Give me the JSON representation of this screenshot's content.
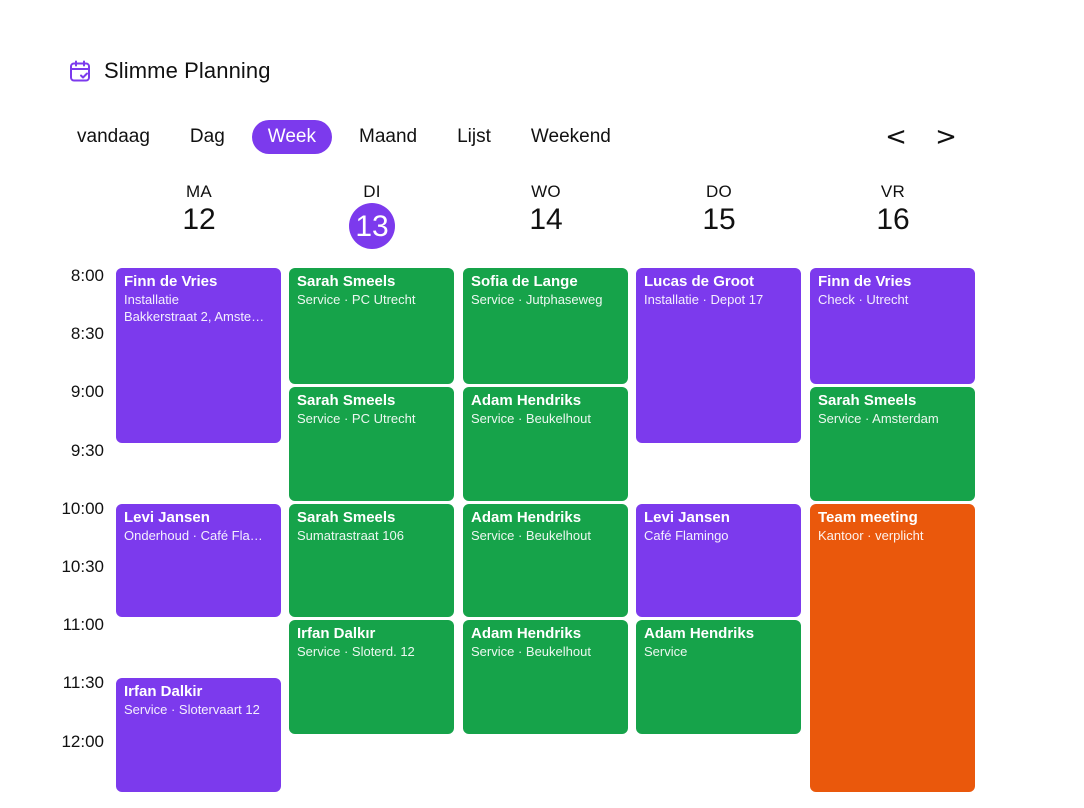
{
  "app": {
    "title": "Slimme Planning",
    "icon": "calendar-check-icon"
  },
  "views": [
    "vandaag",
    "Dag",
    "Week",
    "Maand",
    "Lijst",
    "Weekend"
  ],
  "active_view": "Week",
  "nav": {
    "prev": "<",
    "next": ">"
  },
  "days": [
    {
      "name": "MA",
      "num": "12",
      "today": false
    },
    {
      "name": "DI",
      "num": "13",
      "today": true
    },
    {
      "name": "WO",
      "num": "14",
      "today": false
    },
    {
      "name": "DO",
      "num": "15",
      "today": false
    },
    {
      "name": "VR",
      "num": "16",
      "today": false
    }
  ],
  "times": [
    "8:00",
    "8:30",
    "9:00",
    "9:30",
    "10:00",
    "10:30",
    "11:00",
    "11:30",
    "12:00"
  ],
  "colors": {
    "accent": "#7c3aed",
    "purple": "#7c3aed",
    "green": "#16a34a",
    "orange": "#ea580c"
  },
  "events": [
    {
      "day": 0,
      "start": "8:00",
      "end": "9:30",
      "color": "purple",
      "title": "Finn de Vries",
      "lines": [
        "Installatie",
        "Bakkerstraat 2, Amste…"
      ]
    },
    {
      "day": 0,
      "start": "10:00",
      "end": "11:00",
      "color": "purple",
      "title": "Levi Jansen",
      "lines": [
        "Onderhoud · Café Fla…"
      ]
    },
    {
      "day": 0,
      "start": "11:30",
      "end": "12:30",
      "color": "purple",
      "title": "Irfan Dalkir",
      "lines": [
        "Service · Slotervaart 12"
      ]
    },
    {
      "day": 1,
      "start": "8:00",
      "end": "9:00",
      "color": "green",
      "title": "Sarah Smeels",
      "lines": [
        "Service · PC Utrecht"
      ]
    },
    {
      "day": 1,
      "start": "9:00",
      "end": "10:00",
      "color": "green",
      "title": "Sarah Smeels",
      "lines": [
        "Service · PC Utrecht"
      ]
    },
    {
      "day": 1,
      "start": "10:00",
      "end": "11:00",
      "color": "green",
      "title": "Sarah Smeels",
      "lines": [
        "Sumatrastraat 106"
      ]
    },
    {
      "day": 1,
      "start": "11:00",
      "end": "12:00",
      "color": "green",
      "title": "Irfan Dalkır",
      "lines": [
        "Service · Sloterd. 12"
      ]
    },
    {
      "day": 2,
      "start": "8:00",
      "end": "9:00",
      "color": "green",
      "title": "Sofia de Lange",
      "lines": [
        "Service · Jutphaseweg"
      ]
    },
    {
      "day": 2,
      "start": "9:00",
      "end": "10:00",
      "color": "green",
      "title": "Adam Hendriks",
      "lines": [
        "Service · Beukelhout"
      ]
    },
    {
      "day": 2,
      "start": "10:00",
      "end": "11:00",
      "color": "green",
      "title": "Adam Hendriks",
      "lines": [
        "Service · Beukelhout"
      ]
    },
    {
      "day": 2,
      "start": "11:00",
      "end": "12:00",
      "color": "green",
      "title": "Adam Hendriks",
      "lines": [
        "Service · Beukelhout"
      ]
    },
    {
      "day": 3,
      "start": "8:00",
      "end": "9:30",
      "color": "purple",
      "title": "Lucas de Groot",
      "lines": [
        "Installatie · Depot 17"
      ]
    },
    {
      "day": 3,
      "start": "10:00",
      "end": "11:00",
      "color": "purple",
      "title": "Levi Jansen",
      "lines": [
        "Café Flamingo"
      ]
    },
    {
      "day": 3,
      "start": "11:00",
      "end": "12:00",
      "color": "green",
      "title": "Adam Hendriks",
      "lines": [
        "Service"
      ]
    },
    {
      "day": 4,
      "start": "8:00",
      "end": "9:00",
      "color": "purple",
      "title": "Finn de Vries",
      "lines": [
        "Check · Utrecht"
      ]
    },
    {
      "day": 4,
      "start": "9:00",
      "end": "10:00",
      "color": "green",
      "title": "Sarah Smeels",
      "lines": [
        "Service · Amsterdam"
      ]
    },
    {
      "day": 4,
      "start": "10:00",
      "end": "12:30",
      "color": "orange",
      "title": "Team meeting",
      "lines": [
        "Kantoor · verplicht"
      ]
    }
  ]
}
